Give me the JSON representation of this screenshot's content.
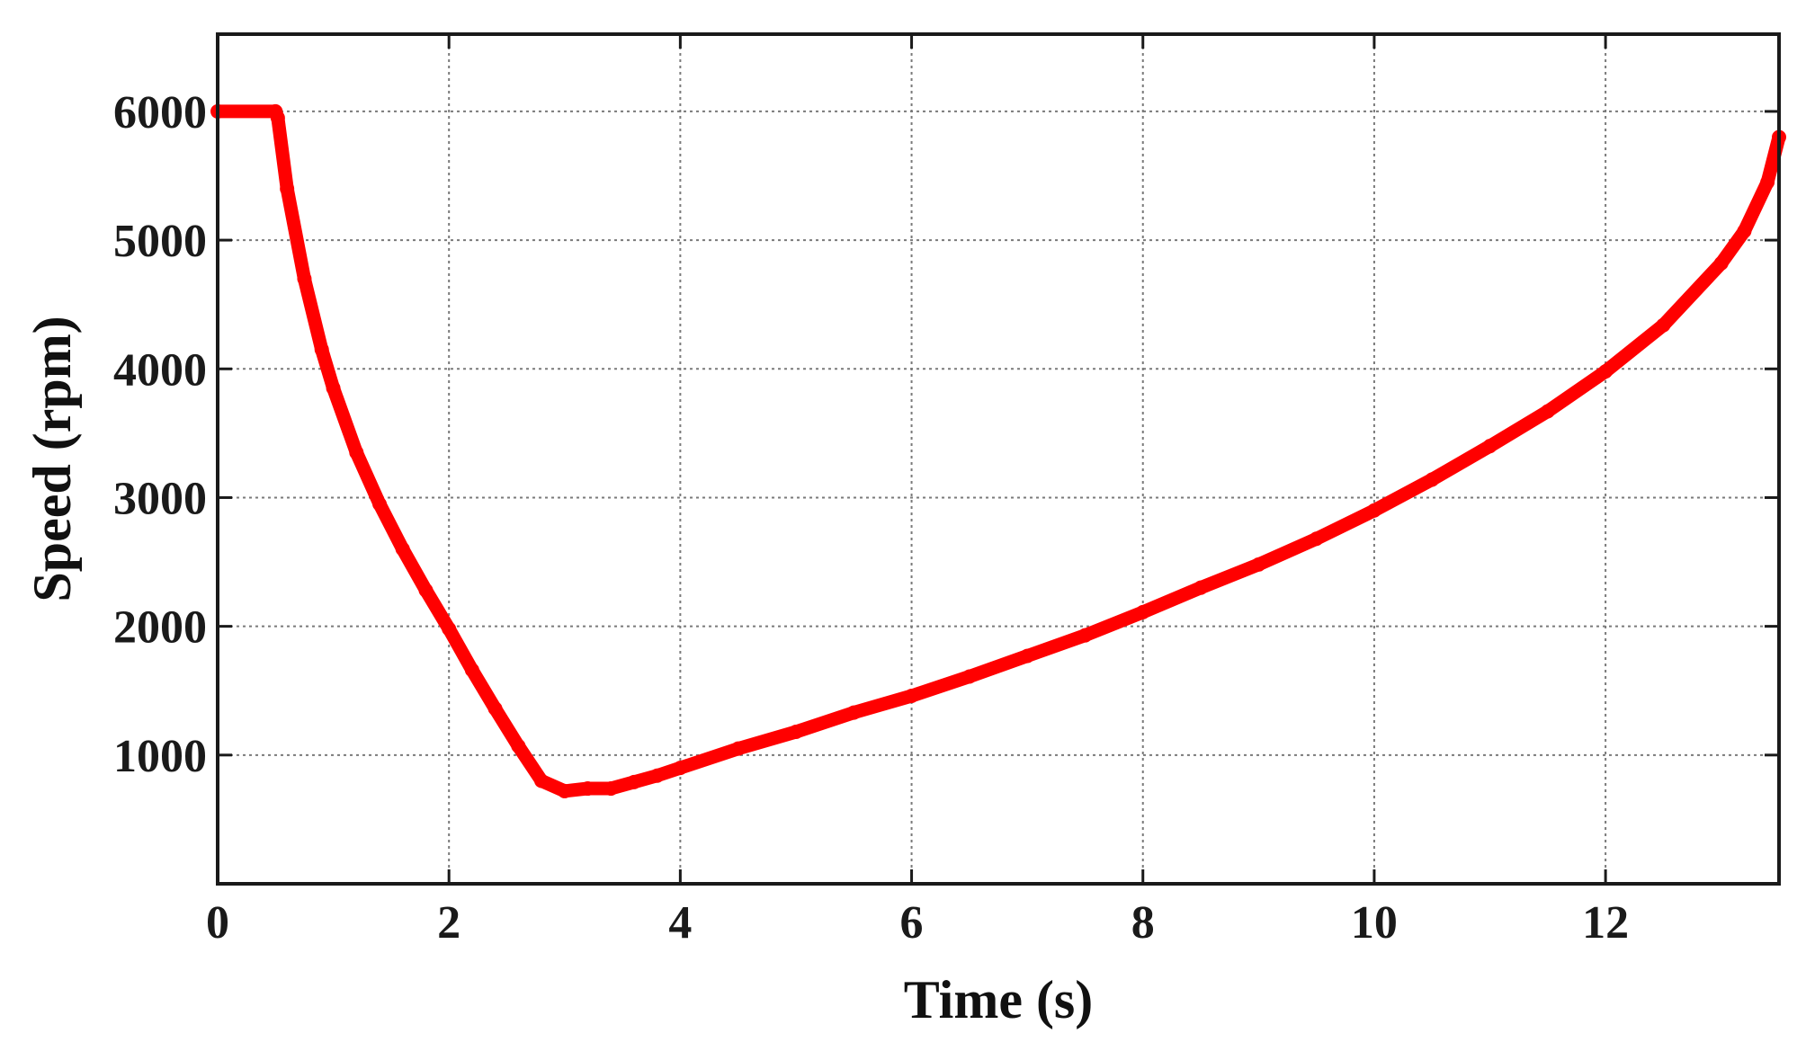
{
  "chart_data": {
    "type": "line",
    "title": "",
    "xlabel": "Time (s)",
    "ylabel": "Speed (rpm)",
    "xlim": [
      0,
      13.5
    ],
    "ylim": [
      0,
      6600
    ],
    "xticks": [
      0,
      2,
      4,
      6,
      8,
      10,
      12
    ],
    "yticks": [
      1000,
      2000,
      3000,
      4000,
      5000,
      6000
    ],
    "xtick_labels": [
      "0",
      "2",
      "4",
      "6",
      "8",
      "10",
      "12"
    ],
    "ytick_labels": [
      "1000",
      "2000",
      "3000",
      "4000",
      "5000",
      "6000"
    ],
    "grid": true,
    "legend": "none",
    "series": [
      {
        "color": "#ff0000",
        "x": [
          0,
          0.5,
          0.52,
          0.6,
          0.75,
          0.9,
          1.0,
          1.2,
          1.4,
          1.6,
          1.8,
          2.0,
          2.2,
          2.4,
          2.6,
          2.8,
          3.0,
          3.2,
          3.4,
          3.6,
          3.8,
          4.0,
          4.5,
          5.0,
          5.5,
          6.0,
          6.5,
          7.0,
          7.5,
          8.0,
          8.5,
          9.0,
          9.5,
          10.0,
          10.5,
          11.0,
          11.5,
          12.0,
          12.5,
          13.0,
          13.2,
          13.4,
          13.5
        ],
        "y": [
          6000,
          6000,
          5950,
          5400,
          4700,
          4150,
          3850,
          3350,
          2950,
          2600,
          2280,
          1980,
          1660,
          1360,
          1070,
          800,
          720,
          740,
          740,
          790,
          840,
          900,
          1050,
          1180,
          1330,
          1460,
          1610,
          1770,
          1930,
          2110,
          2300,
          2480,
          2680,
          2900,
          3140,
          3400,
          3670,
          3980,
          4340,
          4820,
          5070,
          5450,
          5800
        ]
      }
    ]
  }
}
